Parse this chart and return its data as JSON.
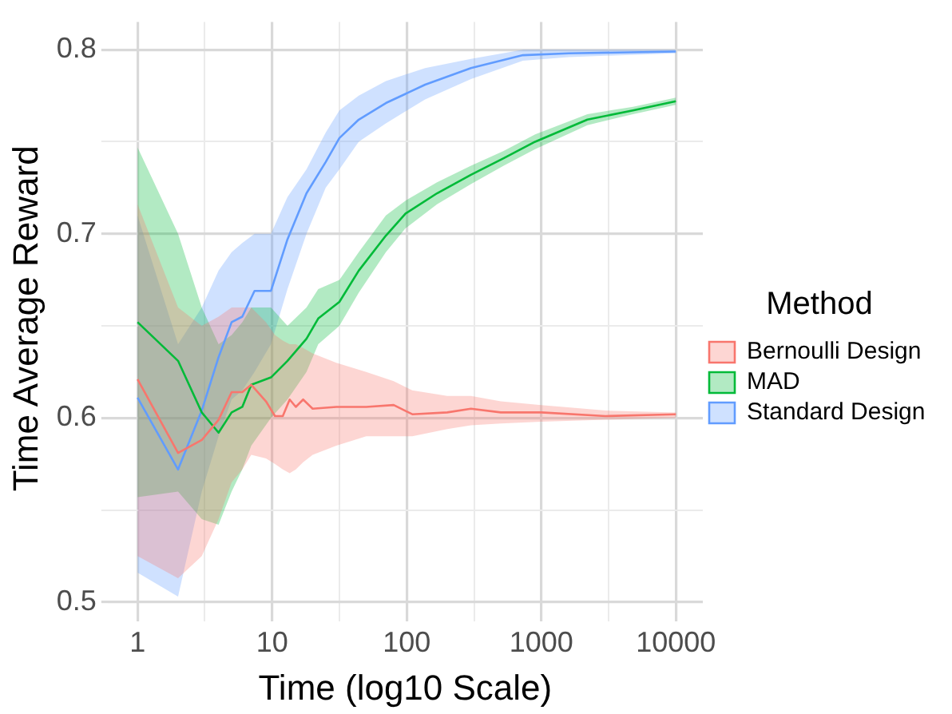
{
  "chart_data": {
    "type": "line",
    "xlabel": "Time (log10 Scale)",
    "ylabel": "Time Average Reward",
    "legend_title": "Method",
    "log": "x",
    "grid": true,
    "legend": "right",
    "xlim": [
      0.63,
      15849
    ],
    "ylim": [
      0.493,
      0.815
    ],
    "xticks": [
      1,
      {
        "value": 3.162,
        "label": null
      },
      10,
      {
        "value": 31.62,
        "label": null
      },
      100,
      {
        "value": 316.2,
        "label": null
      },
      1000,
      {
        "value": 3162,
        "label": null
      },
      10000
    ],
    "yticks": [
      {
        "value": 0.5,
        "label": "0.5"
      },
      {
        "value": 0.55,
        "label": null
      },
      {
        "value": 0.6,
        "label": "0.6"
      },
      {
        "value": 0.65,
        "label": null
      },
      {
        "value": 0.7,
        "label": "0.7"
      },
      {
        "value": 0.75,
        "label": null
      },
      {
        "value": 0.8,
        "label": "0.8"
      }
    ],
    "series": [
      {
        "name": "Bernoulli Design",
        "color": "#f8766d",
        "x": [
          1,
          2,
          3,
          4,
          5,
          6,
          7,
          9,
          10.5,
          12,
          13.5,
          15,
          17,
          20,
          30,
          50,
          80,
          110,
          200,
          300,
          500,
          1000,
          3000,
          10000
        ],
        "values": [
          0.621,
          0.581,
          0.588,
          0.599,
          0.614,
          0.614,
          0.618,
          0.609,
          0.601,
          0.601,
          0.61,
          0.606,
          0.61,
          0.605,
          0.606,
          0.606,
          0.607,
          0.602,
          0.603,
          0.605,
          0.603,
          0.603,
          0.601,
          0.602
        ],
        "lower": [
          0.525,
          0.513,
          0.525,
          0.545,
          0.565,
          0.572,
          0.58,
          0.578,
          0.575,
          0.572,
          0.57,
          0.572,
          0.576,
          0.58,
          0.585,
          0.59,
          0.59,
          0.59,
          0.594,
          0.596,
          0.597,
          0.598,
          0.599,
          0.6
        ],
        "upper": [
          0.716,
          0.66,
          0.65,
          0.655,
          0.66,
          0.66,
          0.66,
          0.652,
          0.645,
          0.642,
          0.64,
          0.64,
          0.638,
          0.635,
          0.63,
          0.625,
          0.62,
          0.615,
          0.612,
          0.612,
          0.609,
          0.607,
          0.604,
          0.603
        ]
      },
      {
        "name": "MAD",
        "color": "#00ba38",
        "x": [
          1,
          2,
          3,
          4,
          5,
          6,
          7,
          9.8,
          13,
          18,
          22,
          31.6,
          44,
          70,
          98,
          168,
          300,
          525,
          900,
          2200,
          4800,
          10000
        ],
        "values": [
          0.652,
          0.631,
          0.603,
          0.592,
          0.603,
          0.606,
          0.618,
          0.622,
          0.631,
          0.643,
          0.654,
          0.663,
          0.68,
          0.699,
          0.711,
          0.722,
          0.732,
          0.741,
          0.75,
          0.762,
          0.767,
          0.772
        ],
        "lower": [
          0.557,
          0.56,
          0.545,
          0.542,
          0.56,
          0.572,
          0.585,
          0.6,
          0.61,
          0.625,
          0.64,
          0.65,
          0.668,
          0.69,
          0.703,
          0.716,
          0.727,
          0.737,
          0.746,
          0.759,
          0.765,
          0.77
        ],
        "upper": [
          0.747,
          0.7,
          0.66,
          0.64,
          0.645,
          0.652,
          0.66,
          0.66,
          0.65,
          0.66,
          0.67,
          0.675,
          0.69,
          0.71,
          0.718,
          0.728,
          0.737,
          0.745,
          0.754,
          0.765,
          0.769,
          0.774
        ]
      },
      {
        "name": "Standard Design",
        "color": "#619cff",
        "x": [
          1,
          2,
          3,
          4,
          5,
          6,
          7.4,
          9.8,
          13,
          18,
          25,
          31.6,
          44,
          70,
          137,
          300,
          730,
          1600,
          10000
        ],
        "values": [
          0.611,
          0.572,
          0.604,
          0.633,
          0.652,
          0.655,
          0.669,
          0.669,
          0.697,
          0.722,
          0.739,
          0.752,
          0.762,
          0.771,
          0.781,
          0.79,
          0.797,
          0.798,
          0.799
        ],
        "lower": [
          0.516,
          0.503,
          0.56,
          0.59,
          0.61,
          0.615,
          0.625,
          0.64,
          0.67,
          0.7,
          0.725,
          0.735,
          0.75,
          0.76,
          0.773,
          0.784,
          0.794,
          0.796,
          0.798
        ],
        "upper": [
          0.71,
          0.64,
          0.66,
          0.68,
          0.69,
          0.695,
          0.7,
          0.7,
          0.72,
          0.735,
          0.755,
          0.767,
          0.775,
          0.783,
          0.79,
          0.795,
          0.8,
          0.8,
          0.8
        ]
      }
    ]
  }
}
